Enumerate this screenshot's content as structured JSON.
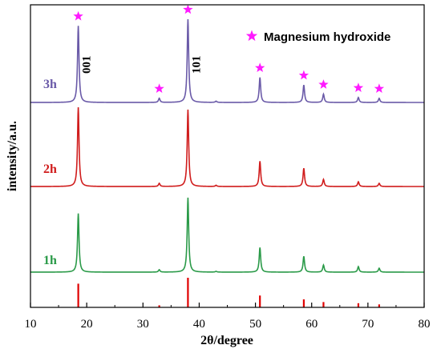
{
  "chart_data": {
    "type": "line",
    "xlabel": "2θ/degree",
    "ylabel": "intensity/a.u.",
    "xlim": [
      10,
      80
    ],
    "x_ticks": [
      10,
      20,
      30,
      40,
      50,
      60,
      70,
      80
    ],
    "y_ticks_shown": false,
    "grid": false,
    "legend": {
      "marker": "star",
      "label": "Magnesium hydroxide",
      "placement": "top-right",
      "color": "#ff1aff"
    },
    "series": [
      {
        "name": "3h",
        "color": "#6a5aa8",
        "peaks": [
          {
            "x": 18.5,
            "height": 0.92
          },
          {
            "x": 32.9,
            "height": 0.05
          },
          {
            "x": 38.0,
            "height": 1.0
          },
          {
            "x": 43.0,
            "height": 0.015
          },
          {
            "x": 50.8,
            "height": 0.3
          },
          {
            "x": 58.6,
            "height": 0.21
          },
          {
            "x": 62.1,
            "height": 0.1
          },
          {
            "x": 68.3,
            "height": 0.06
          },
          {
            "x": 72.0,
            "height": 0.05
          }
        ]
      },
      {
        "name": "2h",
        "color": "#d01c1c",
        "peaks": [
          {
            "x": 18.5,
            "height": 1.0
          },
          {
            "x": 32.9,
            "height": 0.04
          },
          {
            "x": 38.0,
            "height": 0.97
          },
          {
            "x": 43.0,
            "height": 0.015
          },
          {
            "x": 50.8,
            "height": 0.32
          },
          {
            "x": 58.6,
            "height": 0.23
          },
          {
            "x": 62.1,
            "height": 0.09
          },
          {
            "x": 68.3,
            "height": 0.06
          },
          {
            "x": 72.0,
            "height": 0.04
          }
        ]
      },
      {
        "name": "1h",
        "color": "#2a9a48",
        "peaks": [
          {
            "x": 18.5,
            "height": 0.74
          },
          {
            "x": 32.9,
            "height": 0.03
          },
          {
            "x": 38.0,
            "height": 0.94
          },
          {
            "x": 43.0,
            "height": 0.01
          },
          {
            "x": 50.8,
            "height": 0.31
          },
          {
            "x": 58.6,
            "height": 0.2
          },
          {
            "x": 62.1,
            "height": 0.09
          },
          {
            "x": 68.3,
            "height": 0.07
          },
          {
            "x": 72.0,
            "height": 0.05
          }
        ]
      }
    ],
    "reference_pattern": {
      "color": "#e00000",
      "lines": [
        {
          "x": 18.5,
          "height": 0.8
        },
        {
          "x": 32.9,
          "height": 0.07
        },
        {
          "x": 38.0,
          "height": 1.0
        },
        {
          "x": 50.8,
          "height": 0.4
        },
        {
          "x": 58.6,
          "height": 0.27
        },
        {
          "x": 62.1,
          "height": 0.18
        },
        {
          "x": 68.3,
          "height": 0.14
        },
        {
          "x": 72.0,
          "height": 0.1
        }
      ]
    },
    "star_markers_x": [
      18.5,
      32.9,
      38.0,
      50.8,
      58.6,
      62.1,
      68.3,
      72.0
    ],
    "annotations": [
      {
        "text": "001",
        "x": 18.5
      },
      {
        "text": "101",
        "x": 38.0
      }
    ]
  }
}
